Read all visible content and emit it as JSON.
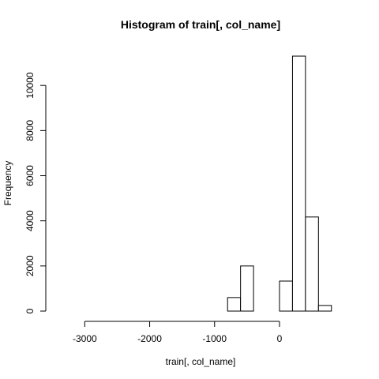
{
  "chart_data": {
    "type": "bar",
    "histogram": true,
    "title": "Histogram of train[, col_name]",
    "xlabel": "train[, col_name]",
    "ylabel": "Frequency",
    "xlim": [
      -3600,
      800
    ],
    "ylim": [
      0,
      11300
    ],
    "x_ticks": [
      -3000,
      -2000,
      -1000,
      0
    ],
    "x_tick_labels": [
      "-3000",
      "-2000",
      "-1000",
      "0"
    ],
    "y_ticks": [
      0,
      2000,
      4000,
      6000,
      8000,
      10000
    ],
    "y_tick_labels": [
      "0",
      "2000",
      "4000",
      "6000",
      "8000",
      "10000"
    ],
    "bin_width": 200,
    "bins": [
      {
        "x0": -3600,
        "x1": -3400,
        "value": 0
      },
      {
        "x0": -3400,
        "x1": -3200,
        "value": 0
      },
      {
        "x0": -3200,
        "x1": -3000,
        "value": 0
      },
      {
        "x0": -3000,
        "x1": -2800,
        "value": 0
      },
      {
        "x0": -2800,
        "x1": -2600,
        "value": 0
      },
      {
        "x0": -2600,
        "x1": -2400,
        "value": 0
      },
      {
        "x0": -2400,
        "x1": -2200,
        "value": 0
      },
      {
        "x0": -2200,
        "x1": -2000,
        "value": 0
      },
      {
        "x0": -2000,
        "x1": -1800,
        "value": 0
      },
      {
        "x0": -1800,
        "x1": -1600,
        "value": 0
      },
      {
        "x0": -1600,
        "x1": -1400,
        "value": 0
      },
      {
        "x0": -1400,
        "x1": -1200,
        "value": 0
      },
      {
        "x0": -1200,
        "x1": -1000,
        "value": 0
      },
      {
        "x0": -1000,
        "x1": -800,
        "value": 0
      },
      {
        "x0": -800,
        "x1": -600,
        "value": 600
      },
      {
        "x0": -600,
        "x1": -400,
        "value": 2000
      },
      {
        "x0": -400,
        "x1": -200,
        "value": 0
      },
      {
        "x0": -200,
        "x1": 0,
        "value": 0
      },
      {
        "x0": 0,
        "x1": 200,
        "value": 1330
      },
      {
        "x0": 200,
        "x1": 400,
        "value": 11300
      },
      {
        "x0": 400,
        "x1": 600,
        "value": 4170
      },
      {
        "x0": 600,
        "x1": 800,
        "value": 250
      }
    ],
    "grid": false,
    "legend": "none",
    "colors": {
      "bar_fill": "#ffffff",
      "bar_stroke": "#000000",
      "axis": "#000000",
      "background": "#ffffff"
    }
  }
}
